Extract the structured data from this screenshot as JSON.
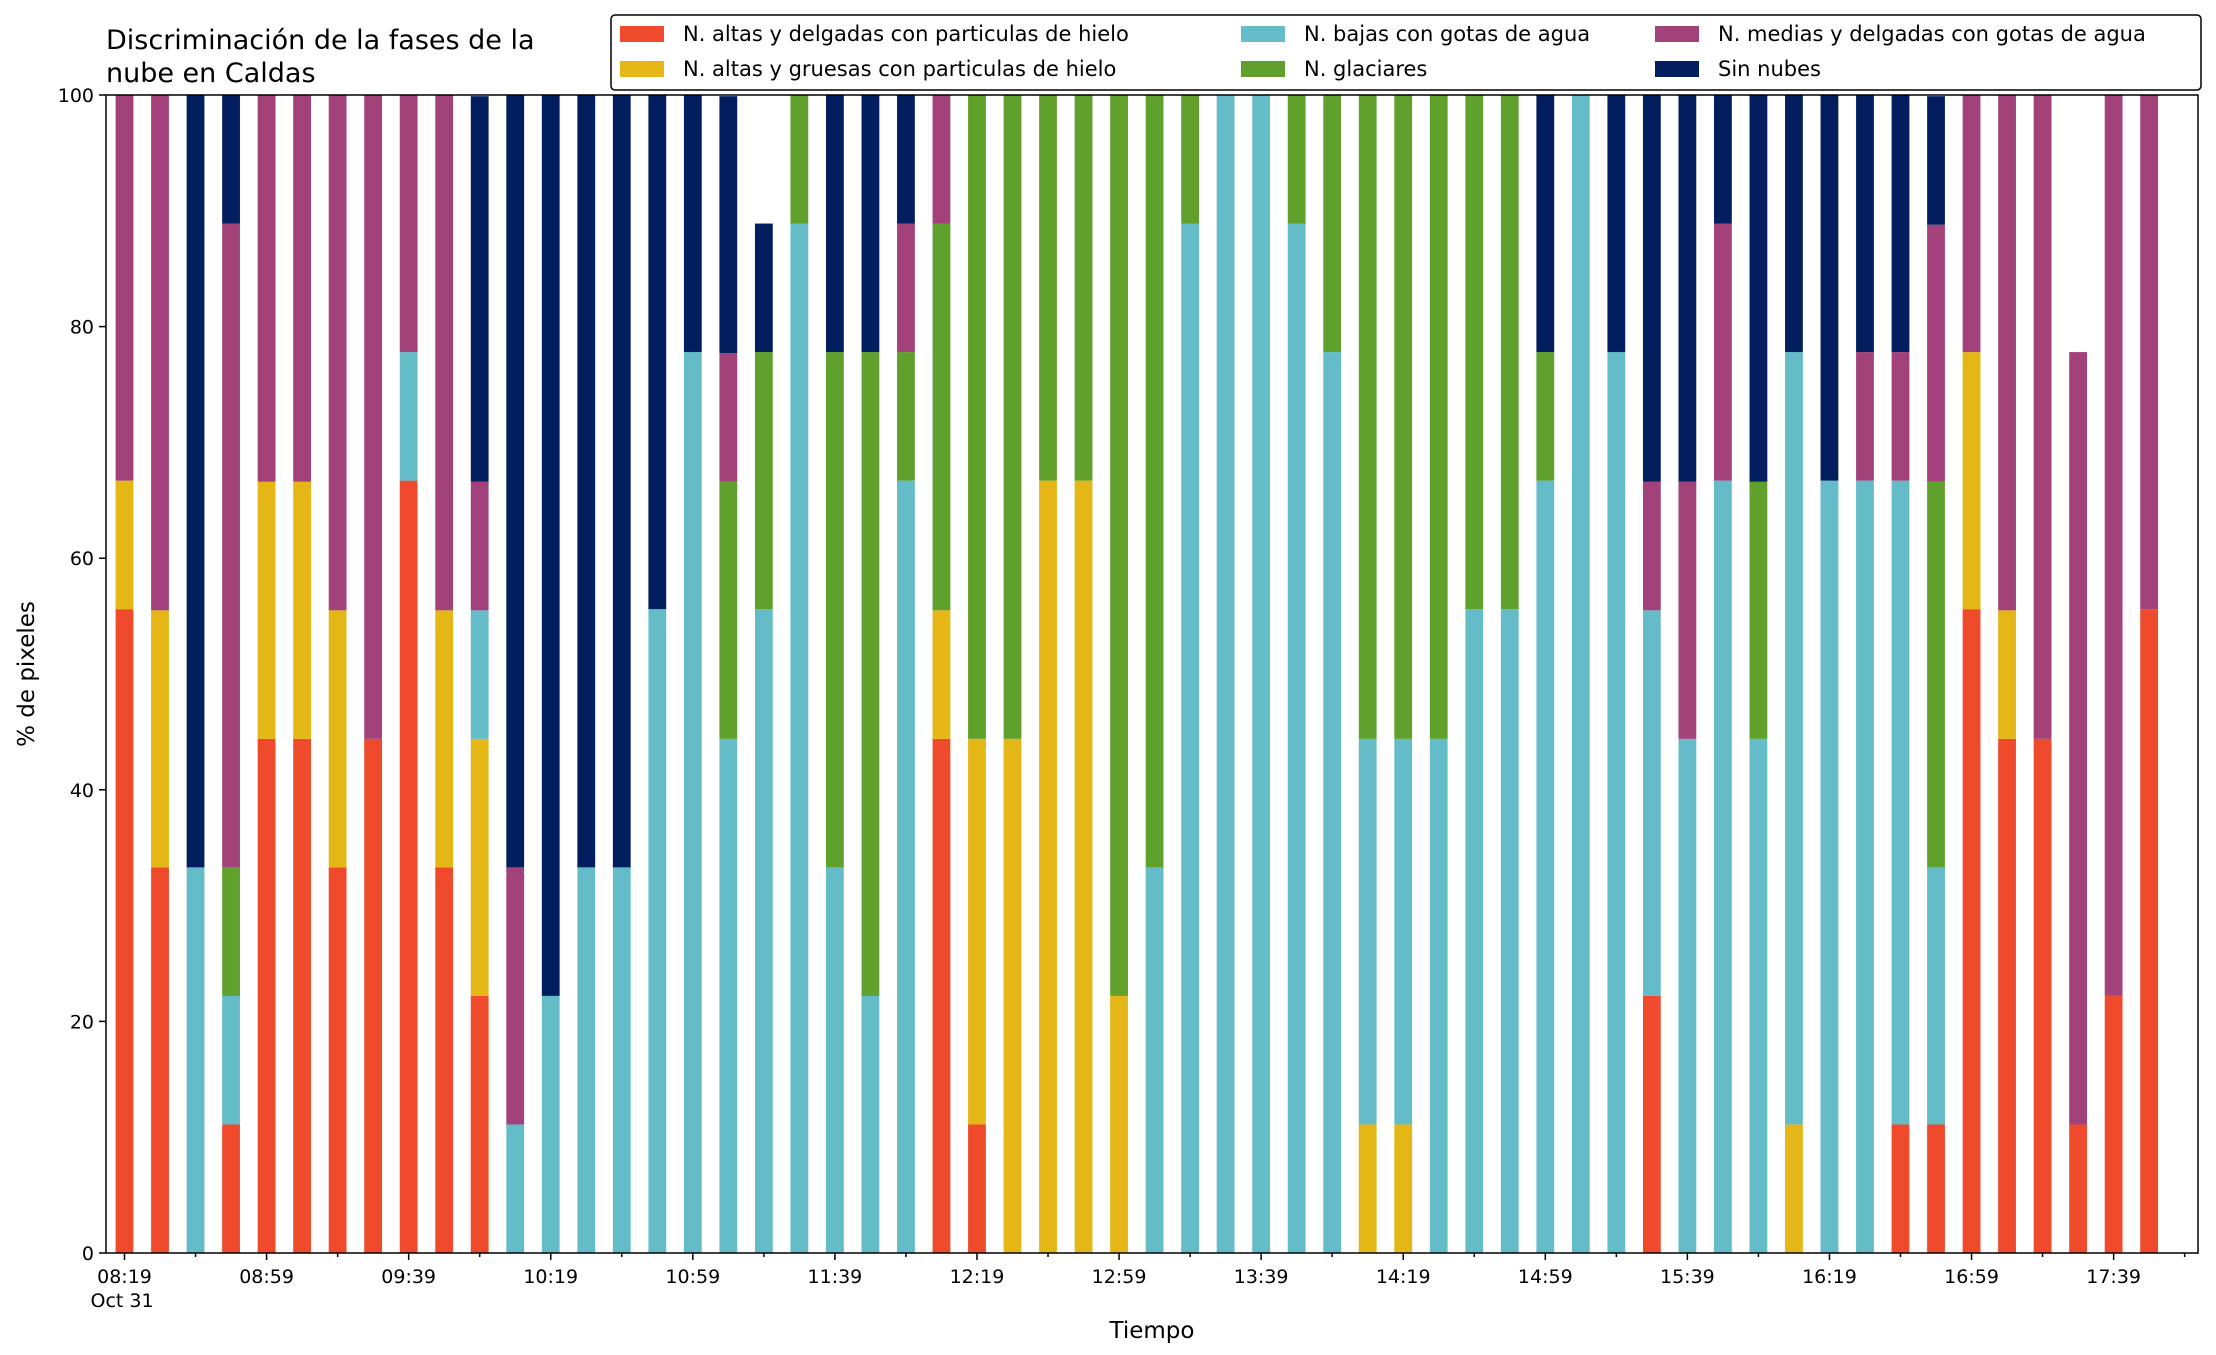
{
  "chart_data": {
    "type": "bar",
    "stacked": true,
    "title": "Discriminación de la fases de la\nnube en Caldas",
    "xlabel": "Tiempo",
    "ylabel": "% de pixeles",
    "ylim": [
      0,
      100
    ],
    "yticks": [
      0,
      20,
      40,
      60,
      80,
      100
    ],
    "grid": false,
    "legend_position": "top",
    "x_date_label": "Oct 31",
    "xtick_labels": [
      "08:19",
      "08:59",
      "09:39",
      "10:19",
      "10:59",
      "11:39",
      "12:19",
      "12:59",
      "13:39",
      "14:19",
      "14:59",
      "15:39",
      "16:19",
      "16:59",
      "17:39"
    ],
    "categories": [
      "08:19",
      "08:29",
      "08:39",
      "08:49",
      "08:59",
      "09:09",
      "09:19",
      "09:29",
      "09:39",
      "09:49",
      "09:59",
      "10:09",
      "10:19",
      "10:29",
      "10:39",
      "10:49",
      "10:59",
      "11:09",
      "11:19",
      "11:29",
      "11:39",
      "11:49",
      "11:59",
      "12:09",
      "12:19",
      "12:29",
      "12:39",
      "12:49",
      "12:59",
      "13:09",
      "13:19",
      "13:29",
      "13:39",
      "13:49",
      "13:59",
      "14:09",
      "14:19",
      "14:29",
      "14:39",
      "14:49",
      "14:59",
      "15:09",
      "15:19",
      "15:29",
      "15:39",
      "15:49",
      "15:59",
      "16:09",
      "16:19",
      "16:29",
      "16:39",
      "16:49",
      "16:59",
      "17:09",
      "17:19",
      "17:29",
      "17:39",
      "17:49"
    ],
    "series": [
      {
        "name": "N. altas y delgadas con particulas de hielo",
        "color": "#ee4a2b",
        "values": [
          55.6,
          33.3,
          0,
          11.1,
          44.4,
          44.4,
          33.3,
          44.4,
          66.7,
          33.3,
          22.2,
          0,
          0,
          0,
          0,
          0,
          0,
          0,
          0,
          0,
          0,
          0,
          0,
          44.4,
          11.1,
          0,
          0,
          0,
          0,
          0,
          0,
          0,
          0,
          0,
          0,
          0,
          0,
          0,
          0,
          0,
          0,
          0,
          0,
          22.2,
          0,
          0,
          0,
          0,
          0,
          0,
          11.1,
          11.1,
          55.6,
          44.4,
          44.4,
          11.1,
          22.2,
          55.6
        ]
      },
      {
        "name": "N. altas y gruesas con particulas de hielo",
        "color": "#e4b716",
        "values": [
          11.1,
          22.2,
          0,
          0,
          22.2,
          22.2,
          22.2,
          0,
          0,
          22.2,
          22.2,
          0,
          0,
          0,
          0,
          0,
          0,
          0,
          0,
          0,
          0,
          0,
          0,
          11.1,
          33.3,
          44.4,
          66.7,
          66.7,
          22.2,
          0,
          0,
          0,
          0,
          0,
          0,
          11.1,
          11.1,
          0,
          0,
          0,
          0,
          0,
          0,
          0,
          0,
          0,
          0,
          11.1,
          0,
          0,
          0,
          0,
          22.2,
          11.1,
          0,
          0,
          0,
          0
        ]
      },
      {
        "name": "N. bajas con gotas de agua",
        "color": "#64bcc8",
        "values": [
          0,
          0,
          33.3,
          11.1,
          0,
          0,
          0,
          0,
          11.1,
          0,
          11.1,
          11.1,
          22.2,
          33.3,
          33.3,
          55.6,
          77.8,
          44.4,
          55.6,
          88.9,
          33.3,
          22.2,
          66.7,
          0,
          0,
          0,
          0,
          0,
          0,
          33.3,
          88.9,
          100,
          100,
          88.9,
          77.8,
          33.3,
          33.3,
          44.4,
          55.6,
          55.6,
          66.7,
          100,
          77.8,
          33.3,
          44.4,
          66.7,
          44.4,
          66.7,
          66.7,
          66.7,
          55.6,
          22.2,
          0,
          0,
          0,
          0,
          0,
          0
        ]
      },
      {
        "name": "N. glaciares",
        "color": "#5fa12c",
        "values": [
          0,
          0,
          0,
          11.1,
          0,
          0,
          0,
          0,
          0,
          0,
          0,
          0,
          0,
          0,
          0,
          0,
          0,
          22.2,
          22.2,
          11.1,
          44.5,
          55.6,
          11.1,
          33.4,
          55.6,
          55.6,
          33.3,
          33.3,
          77.8,
          66.7,
          11.1,
          0,
          0,
          11.1,
          22.2,
          55.6,
          55.6,
          55.6,
          44.4,
          44.4,
          11.1,
          0,
          0,
          0,
          0,
          0,
          22.2,
          0,
          0,
          0,
          0,
          33.3,
          0,
          0,
          0,
          0,
          0,
          0
        ]
      },
      {
        "name": "N. medias y delgadas con gotas de agua",
        "color": "#a3427a",
        "values": [
          33.3,
          44.5,
          0,
          55.6,
          33.4,
          33.4,
          44.5,
          55.6,
          22.2,
          44.5,
          11.1,
          22.2,
          0,
          0,
          0,
          0,
          0,
          11.1,
          0,
          0,
          0,
          0,
          11.1,
          11.1,
          0,
          0,
          0,
          0,
          0,
          0,
          0,
          0,
          0,
          0,
          0,
          0,
          0,
          0,
          0,
          0,
          0,
          0,
          0,
          11.1,
          22.2,
          22.2,
          0,
          0,
          0,
          11.1,
          11.1,
          22.2,
          22.2,
          44.5,
          55.6,
          66.7,
          77.8,
          44.4
        ]
      },
      {
        "name": "Sin nubes",
        "color": "#021e5e",
        "values": [
          0,
          0,
          66.7,
          11.1,
          0,
          0,
          0,
          0,
          0,
          0,
          33.3,
          66.7,
          77.8,
          66.7,
          66.7,
          44.4,
          22.2,
          22.2,
          11.1,
          0,
          22.2,
          22.2,
          11.1,
          0,
          0,
          0,
          0,
          0,
          0,
          0,
          0,
          0,
          0,
          0,
          0,
          0,
          0,
          0,
          0,
          0,
          22.2,
          0,
          22.2,
          33.4,
          33.4,
          11.1,
          33.4,
          22.2,
          33.3,
          22.2,
          22.2,
          11.1,
          0,
          0,
          0,
          0,
          0,
          0
        ]
      }
    ]
  }
}
